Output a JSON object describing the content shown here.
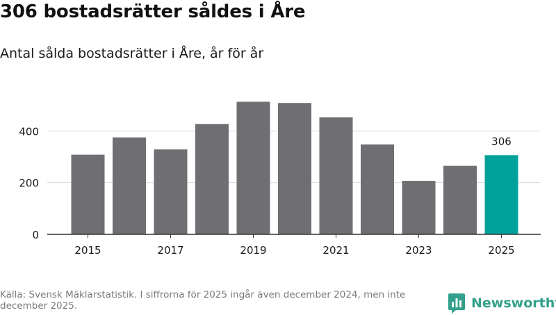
{
  "header": {
    "title": "306 bostadsrätter såldes i Åre",
    "subtitle": "Antal sålda bostadsrätter i Åre, år för år"
  },
  "footer": {
    "source": "Källa: Svensk Mäklarstatistik. I siffrorna för 2025 ingår även december 2024, men inte december 2025.",
    "brand": "Newsworthy"
  },
  "colors": {
    "bar": "#6f6e73",
    "highlight": "#00a19a",
    "grid": "#dcdcdc",
    "axis": "#333333",
    "brand": "#34a08b"
  },
  "chart_data": {
    "type": "bar",
    "title": "Antal sålda bostadsrätter i Åre, år för år",
    "xlabel": "",
    "ylabel": "",
    "categories": [
      "2015",
      "2016",
      "2017",
      "2018",
      "2019",
      "2020",
      "2021",
      "2022",
      "2023",
      "2024",
      "2025"
    ],
    "values": [
      308,
      375,
      329,
      427,
      513,
      508,
      453,
      348,
      207,
      265,
      306
    ],
    "x_tick_labels": [
      "2015",
      "2017",
      "2019",
      "2021",
      "2023",
      "2025"
    ],
    "y_ticks": [
      0,
      200,
      400
    ],
    "ylim": [
      0,
      530
    ],
    "grid": true,
    "highlight_category": "2025",
    "data_labels": [
      {
        "category": "2025",
        "text": "306"
      }
    ]
  }
}
